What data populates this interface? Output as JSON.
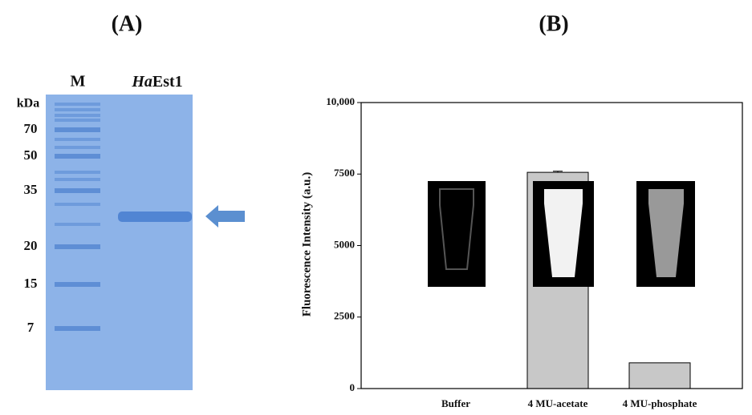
{
  "gel": {
    "panel_label": "(A)",
    "lanes": [
      "M",
      [
        "Ha",
        "Est1"
      ]
    ],
    "unit": "kDa",
    "markers": [
      "70",
      "50",
      "35",
      "20",
      "15",
      "7"
    ]
  },
  "chart_data": {
    "type": "bar",
    "panel_label": "(B)",
    "ylabel": "Fluorescence Intensity (a.u.)",
    "categories": [
      "Buffer",
      "4 MU-acetate",
      "4 MU-phosphate"
    ],
    "values": [
      0,
      7560,
      900
    ],
    "errors": [
      null,
      40,
      null
    ],
    "color": "#c8c8c8",
    "ylim": [
      0,
      10000
    ],
    "yticks": [
      0,
      2500,
      5000,
      7500,
      {
        "value": 10000,
        "label": "10,000"
      }
    ]
  }
}
